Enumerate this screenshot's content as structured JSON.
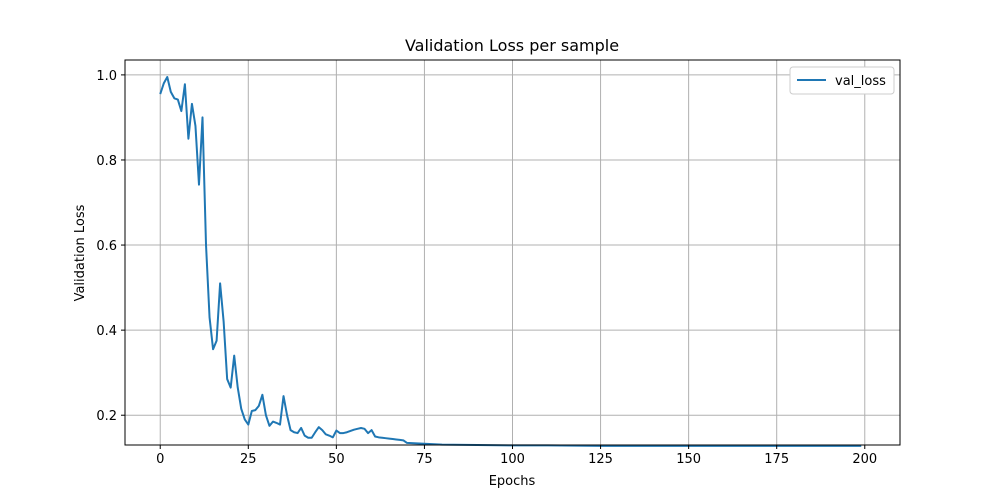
{
  "chart_data": {
    "type": "line",
    "title": "Validation Loss per sample",
    "xlabel": "Epochs",
    "ylabel": "Validation Loss",
    "xlim": [
      -10,
      210
    ],
    "ylim": [
      0.13,
      1.035
    ],
    "grid": true,
    "legend_position": "top-right",
    "x_ticks": [
      0,
      25,
      50,
      75,
      100,
      125,
      150,
      175,
      200
    ],
    "x_tick_labels": [
      "0",
      "25",
      "50",
      "75",
      "100",
      "125",
      "150",
      "175",
      "200"
    ],
    "y_ticks": [
      0.2,
      0.4,
      0.6,
      0.8,
      1.0
    ],
    "y_tick_labels": [
      "0.2",
      "0.4",
      "0.6",
      "0.8",
      "1.0"
    ],
    "series": [
      {
        "name": "val_loss",
        "color": "#1f77b4",
        "x": [
          0,
          1,
          2,
          3,
          4,
          5,
          6,
          7,
          8,
          9,
          10,
          11,
          12,
          13,
          14,
          15,
          16,
          17,
          18,
          19,
          20,
          21,
          22,
          23,
          24,
          25,
          26,
          27,
          28,
          29,
          30,
          31,
          32,
          33,
          34,
          35,
          36,
          37,
          38,
          39,
          40,
          41,
          42,
          43,
          44,
          45,
          46,
          47,
          48,
          49,
          50,
          51,
          52,
          53,
          54,
          55,
          56,
          57,
          58,
          59,
          60,
          61,
          62,
          63,
          64,
          65,
          66,
          67,
          68,
          69,
          70,
          75,
          80,
          90,
          100,
          110,
          125,
          150,
          175,
          199
        ],
        "y": [
          0.955,
          0.98,
          0.995,
          0.96,
          0.945,
          0.942,
          0.915,
          0.978,
          0.85,
          0.932,
          0.88,
          0.742,
          0.9,
          0.6,
          0.43,
          0.355,
          0.375,
          0.51,
          0.42,
          0.285,
          0.265,
          0.34,
          0.265,
          0.215,
          0.19,
          0.178,
          0.21,
          0.212,
          0.222,
          0.248,
          0.2,
          0.175,
          0.185,
          0.182,
          0.178,
          0.245,
          0.2,
          0.165,
          0.16,
          0.158,
          0.17,
          0.152,
          0.147,
          0.147,
          0.16,
          0.172,
          0.165,
          0.155,
          0.152,
          0.148,
          0.164,
          0.158,
          0.158,
          0.16,
          0.163,
          0.166,
          0.168,
          0.17,
          0.168,
          0.158,
          0.165,
          0.15,
          0.148,
          0.147,
          0.146,
          0.145,
          0.144,
          0.143,
          0.142,
          0.141,
          0.135,
          0.133,
          0.131,
          0.13,
          0.129,
          0.129,
          0.128,
          0.128,
          0.128,
          0.128
        ]
      }
    ]
  }
}
